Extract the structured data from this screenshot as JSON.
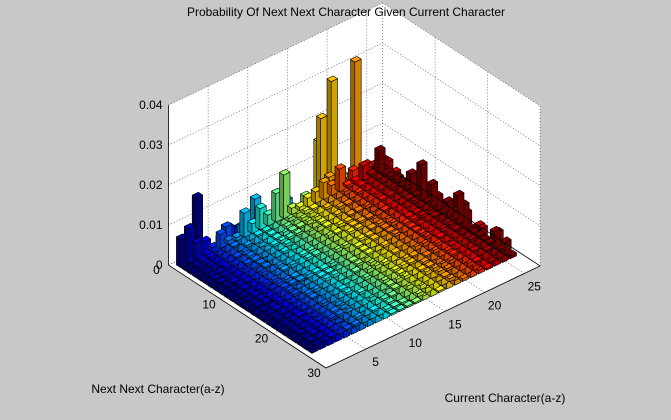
{
  "chart_data": {
    "type": "bar3",
    "title": "Probability Of Next Next Character Given Current Character",
    "xlabel": "Current Character(a-z)",
    "ylabel": "Next Next Character(a-z)",
    "zlabel": "",
    "xlim": [
      0,
      27
    ],
    "ylim": [
      0,
      30
    ],
    "zlim": [
      0,
      0.04
    ],
    "xticks": [
      "5",
      "10",
      "15",
      "20",
      "25"
    ],
    "yticks": [
      "0",
      "10",
      "20",
      "30"
    ],
    "zticks": [
      "0",
      "0.01",
      "0.02",
      "0.03",
      "0.04"
    ],
    "grid": true,
    "colormap": "jet",
    "colormap_colors": [
      "#00008f",
      "#0000ff",
      "#0080ff",
      "#00ffff",
      "#80ff80",
      "#ffff00",
      "#ff8000",
      "#ff0000",
      "#800000"
    ],
    "prominent_values": [
      {
        "x": 19,
        "y": 7,
        "z": 0.0395
      },
      {
        "x": 18,
        "y": 4,
        "z": 0.033
      },
      {
        "x": 18,
        "y": 2,
        "z": 0.022
      },
      {
        "x": 17,
        "y": 3,
        "z": 0.018
      },
      {
        "x": 1,
        "y": 4,
        "z": 0.02
      },
      {
        "x": 8,
        "y": 19,
        "z": 0.015
      },
      {
        "x": 14,
        "y": 12,
        "z": 0.02
      }
    ]
  }
}
